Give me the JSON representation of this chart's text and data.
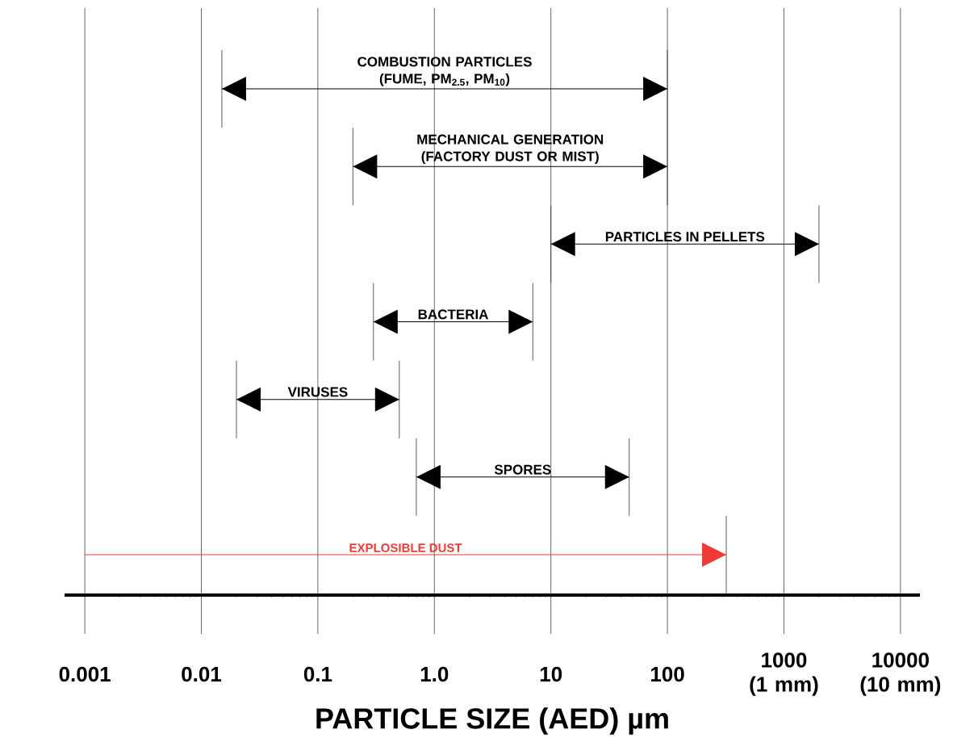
{
  "chart_data": {
    "type": "bar",
    "orientation": "horizontal",
    "xlabel": "PARTICLE SIZE (AED) µm",
    "categories": [
      "COMBUSTION PARTICLES (FUME, PM$_{2.5}$, PM$_{10}$)",
      "MECHANICAL GENERATION (FACTORY DUST OR MIST)",
      "PARTICLES IN PELLETS",
      "BACTERIA",
      "VIRUSES",
      "SPORES",
      "EXPLOSIBLE DUST"
    ],
    "base": [
      0.015,
      0.2,
      10,
      0.3,
      0.02,
      0.7,
      0.001
    ],
    "values": [
      99.985,
      99.8,
      1990,
      6.7,
      0.48,
      46.3,
      319.999
    ],
    "colors": [
      "#000000",
      "#000000",
      "#000000",
      "#000000",
      "#000000",
      "#000000",
      "#ef3b33"
    ],
    "log": "x",
    "xlim": [
      0.00067,
      14700
    ],
    "xticks": [
      {
        "value": 0.001,
        "label": "0.001"
      },
      {
        "value": 0.01,
        "label": "0.01"
      },
      {
        "value": 0.1,
        "label": "0.1"
      },
      {
        "value": 1,
        "label": "1.0"
      },
      {
        "value": 10,
        "label": "10"
      },
      {
        "value": 100,
        "label": "100"
      },
      {
        "value": 1000,
        "label": "1000 (1 mm)"
      },
      {
        "value": 10000,
        "label": "10000 (10 mm)"
      }
    ],
    "grid": "x"
  }
}
